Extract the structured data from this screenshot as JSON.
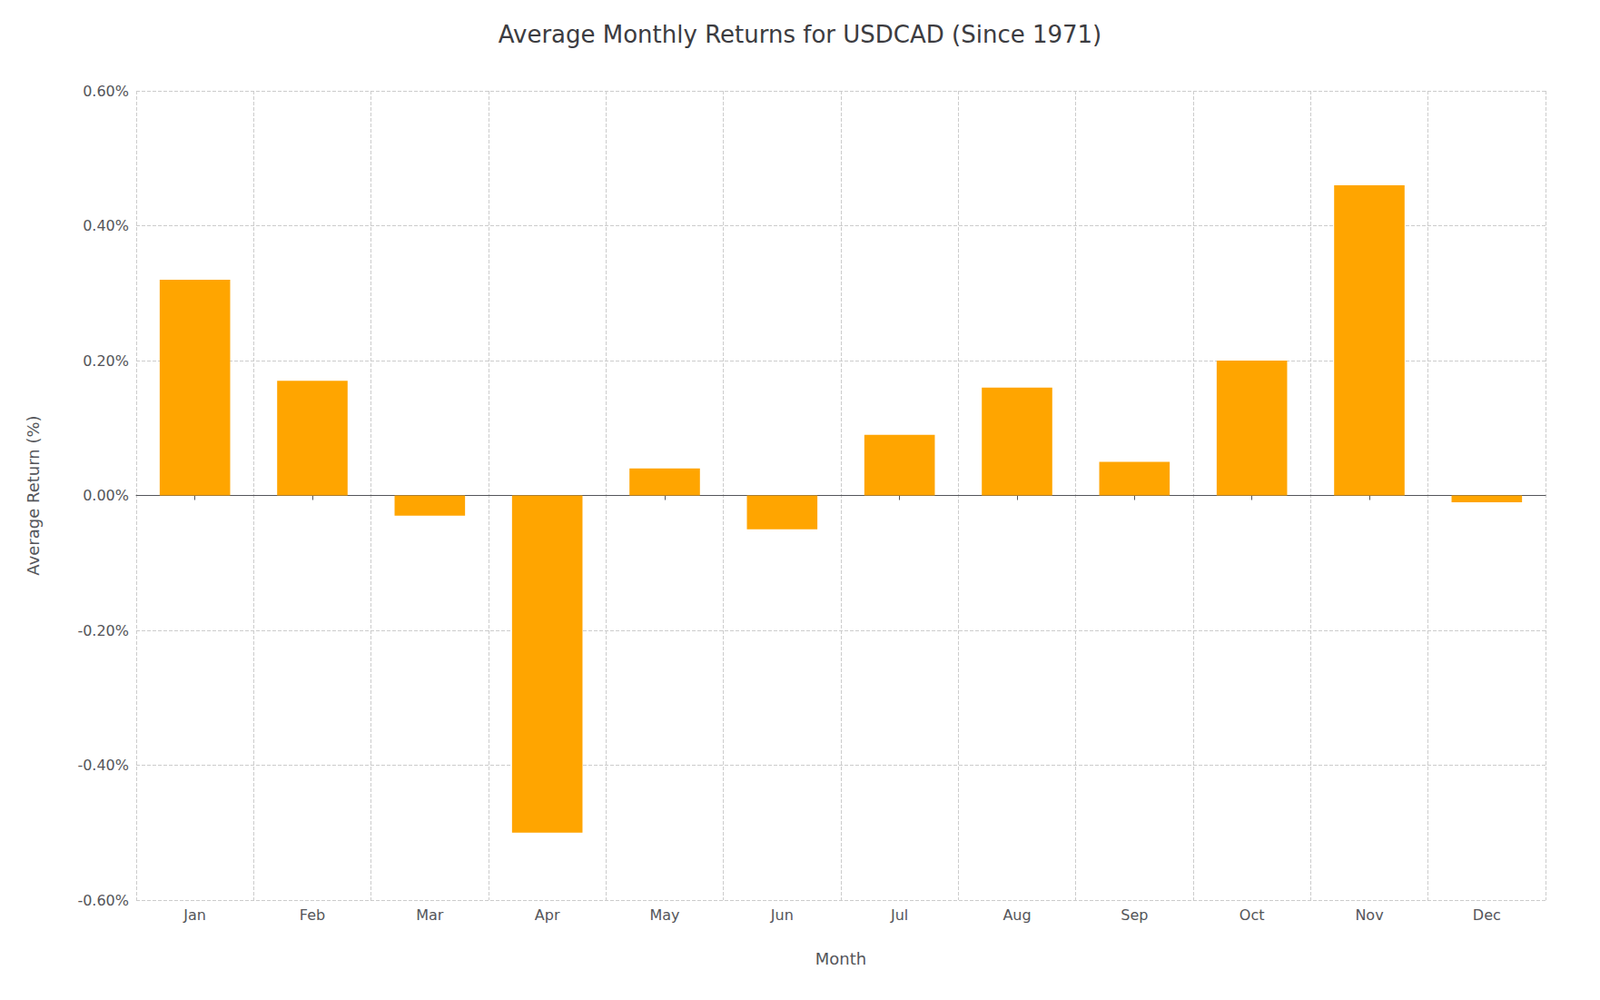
{
  "chart_data": {
    "type": "bar",
    "title": "Average Monthly Returns for USDCAD (Since 1971)",
    "xlabel": "Month",
    "ylabel": "Average Return (%)",
    "categories": [
      "Jan",
      "Feb",
      "Mar",
      "Apr",
      "May",
      "Jun",
      "Jul",
      "Aug",
      "Sep",
      "Oct",
      "Nov",
      "Dec"
    ],
    "values": [
      0.0032,
      0.0017,
      -0.0003,
      -0.005,
      0.0004,
      -0.0005,
      0.0009,
      0.0016,
      0.0005,
      0.002,
      0.0046,
      -0.0001
    ],
    "color": "#FFA500",
    "ylim": [
      -0.006,
      0.006
    ],
    "yticks": [
      {
        "value": -0.006,
        "label": "-0.60%"
      },
      {
        "value": -0.004,
        "label": "-0.40%"
      },
      {
        "value": -0.002,
        "label": "-0.20%"
      },
      {
        "value": 0.0,
        "label": "0.00%"
      },
      {
        "value": 0.002,
        "label": "0.20%"
      },
      {
        "value": 0.004,
        "label": "0.40%"
      },
      {
        "value": 0.006,
        "label": "0.60%"
      }
    ],
    "grid": true
  }
}
